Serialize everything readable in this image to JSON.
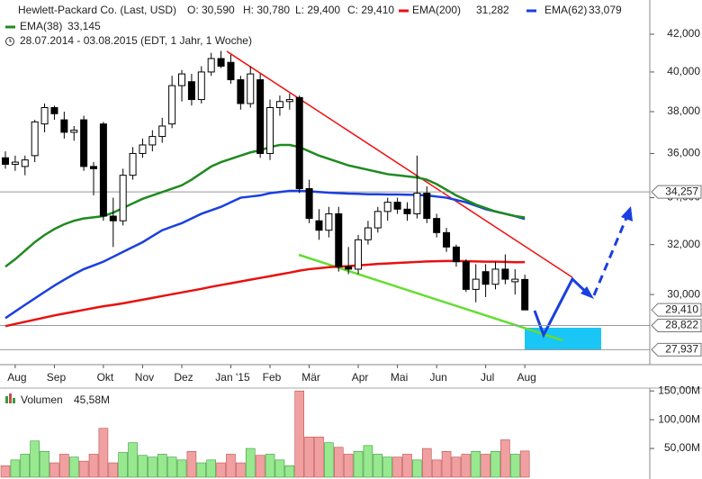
{
  "chart_data": {
    "type": "candlestick",
    "title": "Hewlett-Packard Co. (Last, USD)",
    "quote": [
      {
        "value": 30.59,
        "label": "O: 30,590"
      },
      {
        "value": 30.78,
        "label": "H: 30,780"
      },
      {
        "value": 29.4,
        "label": "L: 29,400"
      },
      {
        "value": 29.41,
        "label": "C: 29,410"
      }
    ],
    "subtitle": "28.07.2014 - 03.08.2015 (EDT, 1 Jahr, 1 Woche)",
    "categories": [
      null,
      "Aug",
      null,
      null,
      null,
      "Sep",
      null,
      null,
      null,
      null,
      "Okt",
      null,
      null,
      null,
      "Nov",
      null,
      null,
      null,
      "Dez",
      null,
      null,
      null,
      null,
      "Jan '15",
      null,
      null,
      null,
      "Feb",
      null,
      null,
      null,
      "Mär",
      null,
      null,
      null,
      null,
      "Apr",
      null,
      null,
      null,
      "Mai",
      null,
      null,
      null,
      "Jun",
      null,
      null,
      null,
      null,
      "Jul",
      null,
      null,
      null,
      "Aug"
    ],
    "open": [
      35.8,
      35.5,
      35.4,
      35.9,
      37.4,
      38.2,
      37.6,
      37.0,
      37.6,
      35.4,
      37.4,
      33.2,
      33.0,
      35.0,
      36.0,
      36.4,
      36.8,
      37.4,
      39.3,
      39.5,
      38.6,
      40.0,
      40.7,
      40.5,
      39.6,
      38.4,
      39.6,
      36.0,
      38.2,
      38.5,
      38.7,
      34.4,
      33.0,
      32.6,
      33.3,
      31.1,
      31.0,
      32.2,
      32.7,
      33.4,
      33.8,
      33.5,
      33.3,
      34.2,
      33.1,
      32.5,
      31.9,
      31.3,
      30.2,
      30.9,
      30.4,
      31.0,
      30.5,
      30.59
    ],
    "high": [
      36.1,
      35.9,
      35.9,
      37.6,
      38.4,
      38.3,
      38.0,
      37.3,
      37.8,
      35.6,
      37.5,
      34.0,
      35.3,
      36.3,
      36.7,
      37.1,
      37.7,
      39.8,
      40.1,
      39.9,
      40.3,
      41.0,
      41.1,
      40.9,
      39.8,
      40.3,
      39.9,
      38.6,
      38.8,
      38.9,
      38.8,
      34.8,
      33.5,
      33.6,
      33.6,
      31.9,
      32.4,
      33.0,
      33.6,
      34.0,
      34.0,
      33.8,
      35.9,
      34.5,
      33.3,
      32.7,
      32.0,
      31.4,
      31.2,
      31.2,
      31.3,
      31.6,
      31.0,
      30.78
    ],
    "low": [
      35.3,
      35.2,
      35.0,
      35.6,
      37.0,
      37.6,
      36.7,
      36.6,
      35.2,
      34.1,
      33.0,
      31.9,
      32.8,
      34.8,
      35.8,
      36.1,
      36.5,
      37.2,
      38.5,
      38.3,
      38.4,
      39.8,
      40.2,
      39.4,
      38.1,
      38.2,
      35.8,
      35.7,
      37.8,
      38.1,
      34.2,
      32.9,
      32.2,
      32.3,
      30.9,
      30.8,
      30.8,
      32.0,
      32.5,
      33.0,
      33.3,
      33.0,
      33.1,
      32.9,
      32.3,
      31.7,
      31.1,
      30.1,
      29.7,
      29.9,
      30.2,
      30.4,
      30.0,
      29.4
    ],
    "close": [
      35.5,
      35.6,
      35.7,
      37.5,
      38.2,
      37.9,
      37.0,
      37.1,
      35.4,
      35.3,
      33.2,
      33.0,
      35.0,
      36.0,
      36.4,
      36.8,
      37.3,
      39.3,
      39.9,
      38.6,
      40.0,
      40.7,
      40.3,
      39.6,
      38.4,
      39.9,
      36.0,
      38.2,
      38.5,
      38.6,
      34.4,
      33.1,
      32.6,
      33.3,
      31.1,
      31.0,
      32.2,
      32.7,
      33.4,
      33.8,
      33.5,
      33.3,
      34.2,
      33.1,
      32.5,
      31.9,
      31.3,
      30.2,
      30.6,
      30.4,
      31.0,
      30.6,
      30.6,
      29.41
    ],
    "series": [
      {
        "name": "EMA(200)",
        "color": "#e81010",
        "last_label": "31,282",
        "values": [
          28.8,
          28.88,
          28.96,
          29.04,
          29.12,
          29.2,
          29.27,
          29.34,
          29.41,
          29.48,
          29.55,
          29.6,
          29.66,
          29.73,
          29.8,
          29.87,
          29.94,
          30.01,
          30.08,
          30.15,
          30.22,
          30.3,
          30.37,
          30.44,
          30.51,
          30.58,
          30.65,
          30.72,
          30.79,
          30.86,
          30.94,
          31.0,
          31.04,
          31.08,
          31.1,
          31.12,
          31.15,
          31.18,
          31.21,
          31.23,
          31.25,
          31.27,
          31.29,
          31.31,
          31.32,
          31.33,
          31.33,
          31.32,
          31.31,
          31.3,
          31.3,
          31.29,
          31.28,
          31.282
        ]
      },
      {
        "name": "EMA(62)",
        "color": "#1a3fe0",
        "last_label": "33,079",
        "values": [
          29.1,
          29.35,
          29.6,
          29.85,
          30.1,
          30.35,
          30.58,
          30.8,
          31.0,
          31.15,
          31.3,
          31.5,
          31.7,
          31.9,
          32.1,
          32.35,
          32.6,
          32.75,
          32.9,
          33.1,
          33.3,
          33.45,
          33.6,
          33.8,
          34.0,
          34.05,
          34.1,
          34.2,
          34.25,
          34.3,
          34.3,
          34.28,
          34.25,
          34.22,
          34.2,
          34.18,
          34.17,
          34.15,
          34.15,
          34.14,
          34.14,
          34.13,
          34.12,
          34.1,
          34.05,
          34.0,
          33.9,
          33.8,
          33.65,
          33.5,
          33.4,
          33.3,
          33.2,
          33.079
        ]
      },
      {
        "name": "EMA(38)",
        "color": "#1f8a1f",
        "last_label": "33,145",
        "values": [
          31.1,
          31.4,
          31.75,
          32.1,
          32.4,
          32.65,
          32.85,
          33.0,
          33.1,
          33.15,
          33.2,
          33.35,
          33.55,
          33.75,
          33.95,
          34.1,
          34.25,
          34.4,
          34.55,
          34.8,
          35.1,
          35.4,
          35.6,
          35.75,
          35.9,
          36.05,
          36.15,
          36.3,
          36.4,
          36.4,
          36.3,
          36.1,
          35.9,
          35.75,
          35.6,
          35.45,
          35.35,
          35.25,
          35.15,
          35.05,
          35.0,
          34.95,
          34.9,
          34.8,
          34.6,
          34.35,
          34.1,
          33.9,
          33.7,
          33.55,
          33.4,
          33.3,
          33.2,
          33.145
        ]
      }
    ],
    "ylog": true,
    "ylim": [
      27.4,
      43.9
    ],
    "yticks": [
      {
        "value": 30,
        "label": "30,000"
      },
      {
        "value": 32,
        "label": "32,000"
      },
      {
        "value": 34,
        "label": "34,000"
      },
      {
        "value": 36,
        "label": "36,000"
      },
      {
        "value": 38,
        "label": "38,000"
      },
      {
        "value": 40,
        "label": "40,000"
      },
      {
        "value": 42,
        "label": "42,000"
      }
    ],
    "levels": [
      {
        "value": 34.257,
        "label": "34,257"
      },
      {
        "value": 29.41,
        "label": "29,410",
        "line": false
      },
      {
        "value": 28.822,
        "label": "28,822"
      },
      {
        "value": 27.937,
        "label": "27,937"
      }
    ],
    "up_color": "#ffffff",
    "down_color": "#000000",
    "volume": {
      "name": "Volumen",
      "last_label": "45,58M",
      "values": [
        20,
        30,
        40,
        63,
        45,
        25,
        40,
        35,
        28,
        40,
        85,
        25,
        43,
        60,
        38,
        35,
        40,
        35,
        30,
        45,
        25,
        30,
        25,
        40,
        25,
        50,
        38,
        40,
        30,
        20,
        150,
        70,
        70,
        60,
        52,
        40,
        45,
        55,
        40,
        35,
        35,
        40,
        30,
        50,
        30,
        45,
        35,
        40,
        45,
        40,
        45,
        65,
        40,
        45.58
      ],
      "up_color": "#98e890",
      "down_color": "#f0a0a0",
      "ylim": [
        0,
        155
      ],
      "yticks": [
        {
          "value": 50,
          "label": "50,00M"
        },
        {
          "value": 100,
          "label": "100,00M"
        },
        {
          "value": 150,
          "label": "150,00M"
        }
      ]
    }
  }
}
